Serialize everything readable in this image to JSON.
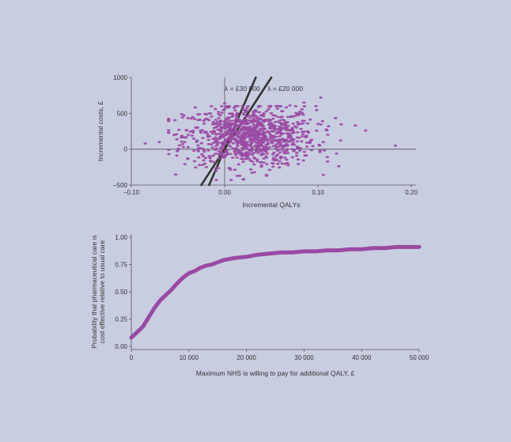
{
  "colors": {
    "background": "#c9cde0",
    "points": "#9a4aa3",
    "curve": "#9a4aa3",
    "lines": "#333333",
    "axes": "#555555"
  },
  "chart_data": [
    {
      "type": "scatter",
      "title": "",
      "xlabel": "Incremental QALYs",
      "ylabel": "Incremental costs, £",
      "xlim": [
        -0.1,
        0.2
      ],
      "ylim": [
        -500,
        1000
      ],
      "x_ticks": [
        -0.1,
        0.0,
        0.1,
        0.2
      ],
      "x_tick_labels": [
        "−0.10",
        "0.00",
        "0.10",
        "0.20"
      ],
      "y_ticks": [
        -500,
        0,
        500,
        1000
      ],
      "y_tick_labels": [
        "−500",
        "0",
        "500",
        "1000"
      ],
      "grid": false,
      "cloud": {
        "n_points": 1000,
        "mean": [
          0.027,
          180
        ],
        "sd": [
          0.035,
          210
        ],
        "correlation": 0.0
      },
      "outliers": [
        {
          "x": 0.183,
          "y": 50
        },
        {
          "x": 0.151,
          "y": 260
        },
        {
          "x": 0.14,
          "y": 330
        },
        {
          "x": -0.085,
          "y": 80
        },
        {
          "x": -0.07,
          "y": 100
        },
        {
          "x": -0.05,
          "y": 0
        },
        {
          "x": 0.103,
          "y": 720
        },
        {
          "x": 0.085,
          "y": 650
        },
        {
          "x": 0.07,
          "y": 610
        },
        {
          "x": 0.11,
          "y": -110
        },
        {
          "x": 0.12,
          "y": -60
        },
        {
          "x": 0.02,
          "y": -420
        },
        {
          "x": 0.045,
          "y": -360
        },
        {
          "x": -0.01,
          "y": 560
        },
        {
          "x": 0.0,
          "y": 640
        }
      ],
      "threshold_lines": [
        {
          "label": "λ = £30 000",
          "slope": 30000
        },
        {
          "label": "λ = £20 000",
          "slope": 20000
        }
      ]
    },
    {
      "type": "line",
      "title": "",
      "xlabel": "Maximum NHS is willing to pay for additional QALY, £",
      "ylabel_lines": [
        "Probability that pharmaceutical care is",
        "cost effective relative to usual care"
      ],
      "xlim": [
        0,
        50000
      ],
      "ylim": [
        0,
        1
      ],
      "x_ticks": [
        0,
        10000,
        20000,
        30000,
        40000,
        50000
      ],
      "x_tick_labels": [
        "0",
        "10 000",
        "20 000",
        "30 000",
        "40 000",
        "50 000"
      ],
      "y_ticks": [
        0,
        0.25,
        0.5,
        0.75,
        1.0
      ],
      "y_tick_labels": [
        "0.00",
        "0.25",
        "0.50",
        "0.75",
        "1.00"
      ],
      "grid": false,
      "series": [
        {
          "x": [
            0,
            2000,
            4000,
            5000,
            6000,
            7000,
            8000,
            9000,
            10000,
            11000,
            12000,
            13000,
            14000,
            15000,
            16000,
            18000,
            20000,
            22000,
            24000,
            26000,
            28000,
            30000,
            32000,
            34000,
            36000,
            38000,
            40000,
            42000,
            44000,
            46000,
            48000,
            50000
          ],
          "values": [
            0.08,
            0.18,
            0.35,
            0.42,
            0.47,
            0.52,
            0.58,
            0.63,
            0.67,
            0.69,
            0.72,
            0.74,
            0.75,
            0.77,
            0.79,
            0.81,
            0.82,
            0.84,
            0.85,
            0.86,
            0.86,
            0.87,
            0.87,
            0.88,
            0.88,
            0.89,
            0.89,
            0.9,
            0.9,
            0.91,
            0.91,
            0.91
          ]
        }
      ]
    }
  ]
}
